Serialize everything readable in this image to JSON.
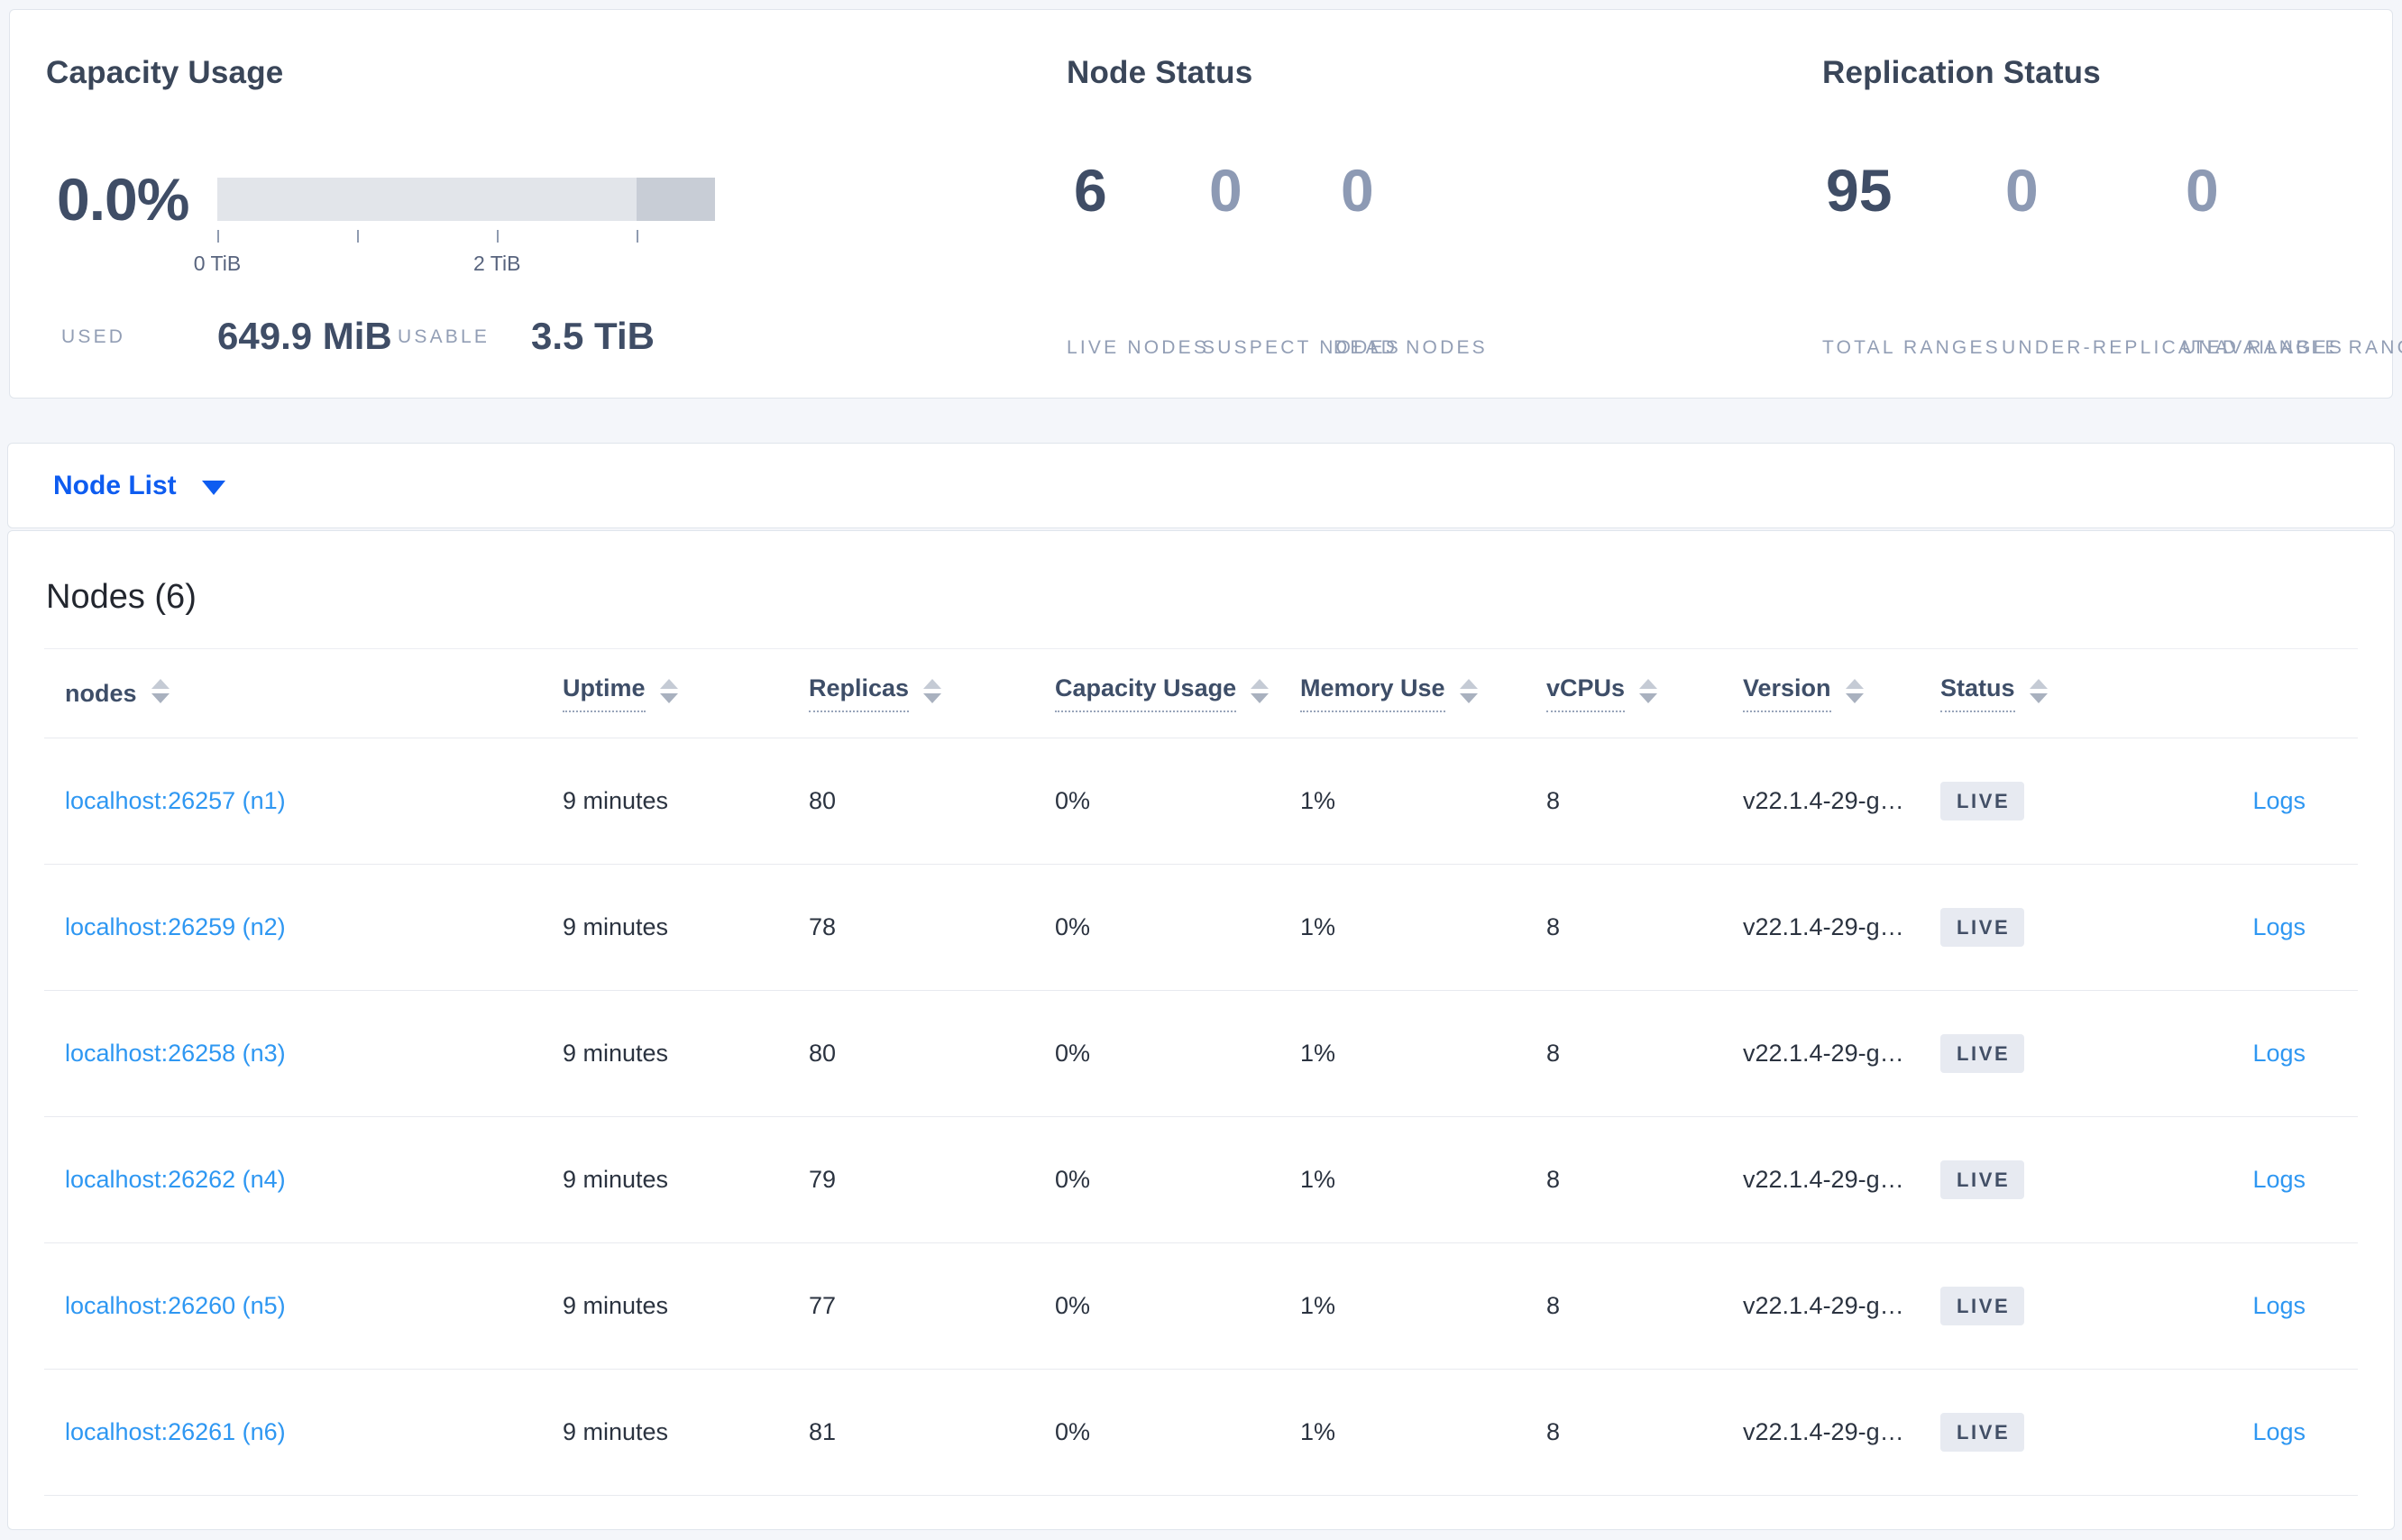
{
  "summary": {
    "capacity": {
      "title": "Capacity Usage",
      "percent": "0.0%",
      "ticks": [
        {
          "label": "0 TiB"
        },
        {
          "label": ""
        },
        {
          "label": "2 TiB"
        },
        {
          "label": ""
        }
      ],
      "used_label": "USED",
      "used_value": "649.9 MiB",
      "usable_label": "USABLE",
      "usable_value": "3.5 TiB"
    },
    "node_status": {
      "title": "Node Status",
      "metrics": [
        {
          "value": "6",
          "label": "LIVE NODES"
        },
        {
          "value": "0",
          "label": "SUSPECT NODES"
        },
        {
          "value": "0",
          "label": "DEAD NODES"
        }
      ]
    },
    "replication_status": {
      "title": "Replication Status",
      "metrics": [
        {
          "value": "95",
          "label": "TOTAL RANGES"
        },
        {
          "value": "0",
          "label": "UNDER-REPLICATED RANGES"
        },
        {
          "value": "0",
          "label": "UNAVAILABLE RANGES"
        }
      ]
    }
  },
  "view_selector": {
    "label": "Node List"
  },
  "nodes_table": {
    "title": "Nodes (6)",
    "columns": [
      {
        "label": "nodes"
      },
      {
        "label": "Uptime"
      },
      {
        "label": "Replicas"
      },
      {
        "label": "Capacity Usage"
      },
      {
        "label": "Memory Use"
      },
      {
        "label": "vCPUs"
      },
      {
        "label": "Version"
      },
      {
        "label": "Status"
      },
      {
        "label": ""
      }
    ],
    "rows": [
      {
        "node": "localhost:26257 (n1)",
        "uptime": "9 minutes",
        "replicas": "80",
        "capacity_usage": "0%",
        "memory_use": "1%",
        "vcpus": "8",
        "version": "v22.1.4-29-g…",
        "status": "LIVE",
        "logs_label": "Logs"
      },
      {
        "node": "localhost:26259 (n2)",
        "uptime": "9 minutes",
        "replicas": "78",
        "capacity_usage": "0%",
        "memory_use": "1%",
        "vcpus": "8",
        "version": "v22.1.4-29-g…",
        "status": "LIVE",
        "logs_label": "Logs"
      },
      {
        "node": "localhost:26258 (n3)",
        "uptime": "9 minutes",
        "replicas": "80",
        "capacity_usage": "0%",
        "memory_use": "1%",
        "vcpus": "8",
        "version": "v22.1.4-29-g…",
        "status": "LIVE",
        "logs_label": "Logs"
      },
      {
        "node": "localhost:26262 (n4)",
        "uptime": "9 minutes",
        "replicas": "79",
        "capacity_usage": "0%",
        "memory_use": "1%",
        "vcpus": "8",
        "version": "v22.1.4-29-g…",
        "status": "LIVE",
        "logs_label": "Logs"
      },
      {
        "node": "localhost:26260 (n5)",
        "uptime": "9 minutes",
        "replicas": "77",
        "capacity_usage": "0%",
        "memory_use": "1%",
        "vcpus": "8",
        "version": "v22.1.4-29-g…",
        "status": "LIVE",
        "logs_label": "Logs"
      },
      {
        "node": "localhost:26261 (n6)",
        "uptime": "9 minutes",
        "replicas": "81",
        "capacity_usage": "0%",
        "memory_use": "1%",
        "vcpus": "8",
        "version": "v22.1.4-29-g…",
        "status": "LIVE",
        "logs_label": "Logs"
      }
    ]
  },
  "colors": {
    "accent_blue": "#0e5cf0",
    "link_blue": "#2e97f2",
    "value_dark": "#3f4d66",
    "value_muted": "#8d9ab4",
    "badge_bg": "#e7eaf1",
    "bar_track": "#e2e5ea",
    "bar_segment": "#c8cdd6",
    "page_bg": "#f4f6fa"
  }
}
